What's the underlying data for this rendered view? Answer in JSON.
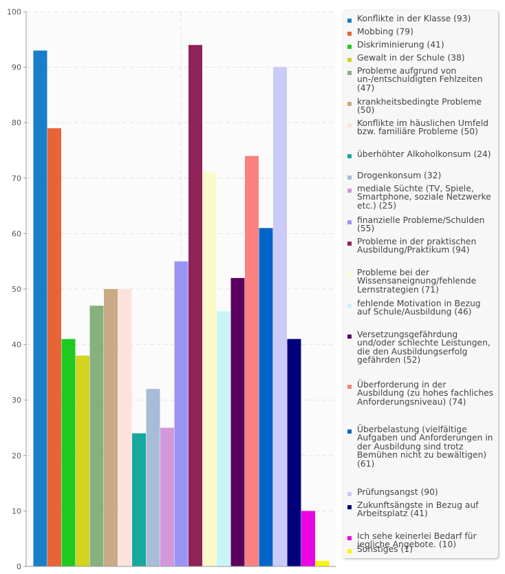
{
  "chart_data": {
    "type": "bar",
    "ylim": [
      0,
      100
    ],
    "yticks": [
      0,
      10,
      20,
      30,
      40,
      50,
      60,
      70,
      80,
      90,
      100
    ],
    "grid": true,
    "legend_position": "right",
    "bars": [
      {
        "label": "Konflikte in der Klasse (93)",
        "value": 93,
        "color": "#1a7ec8"
      },
      {
        "label": "Mobbing (79)",
        "value": 79,
        "color": "#e86436"
      },
      {
        "label": "Diskriminierung (41)",
        "value": 41,
        "color": "#20c920"
      },
      {
        "label": "Gewalt in der Schule (38)",
        "value": 38,
        "color": "#d2d41e"
      },
      {
        "label": "Probleme aufgrund von un-/entschuldigten Fehlzeiten (47)",
        "value": 47,
        "color": "#87b07f"
      },
      {
        "label": "krankheitsbedingte Probleme (50)",
        "value": 50,
        "color": "#c9aa84"
      },
      {
        "label": "Konflikte im häuslichen Umfeld bzw. familiäre Probleme (50)",
        "value": 50,
        "color": "#fbe3dc"
      },
      {
        "label": "überhöhter Alkoholkonsum (24)",
        "value": 24,
        "color": "#17a8a0"
      },
      {
        "label": "Drogenkonsum (32)",
        "value": 32,
        "color": "#a7bcd8"
      },
      {
        "label": "mediale Süchte (TV, Spiele, Smartphone, soziale Netzwerke etc.) (25)",
        "value": 25,
        "color": "#d398da"
      },
      {
        "label": "finanzielle Probleme/Schulden (55)",
        "value": 55,
        "color": "#9a95f5"
      },
      {
        "label": "Probleme in der praktischen Ausbildung/Praktikum (94)",
        "value": 94,
        "color": "#8f2257"
      },
      {
        "label": "Probleme bei der Wissensaneignung/fehlende Lernstrategien (71)",
        "value": 71,
        "color": "#fbf9c9"
      },
      {
        "label": "fehlende Motivation in Bezug auf Schule/Ausbildung (46)",
        "value": 46,
        "color": "#c8f6f8"
      },
      {
        "label": "Versetzungsgefährdung und/oder schlechte Leistungen, die den Ausbildungserfolg gefährden (52)",
        "value": 52,
        "color": "#5c0060"
      },
      {
        "label": "Überforderung in der Ausbildung (zu hohes fachliches Anforderungsniveau) (74)",
        "value": 74,
        "color": "#fb8080"
      },
      {
        "label": "Überbelastung (vielfältige Aufgaben und Anforderungen in der Ausbildung sind trotz Bemühen nicht zu bewältigen) (61)",
        "value": 61,
        "color": "#0564c8"
      },
      {
        "label": "Prüfungsangst (90)",
        "value": 90,
        "color": "#cbcbf9"
      },
      {
        "label": "Zukunftsängste in Bezug auf Arbeitsplatz (41)",
        "value": 41,
        "color": "#00007a"
      },
      {
        "label": "Ich sehe keinerlei Bedarf für jegliche Angebote. (10)",
        "value": 10,
        "color": "#ea06e4"
      },
      {
        "label": "Sonstiges (1)",
        "value": 1,
        "color": "#f6f606"
      }
    ]
  },
  "legend": {
    "items": [
      "Konflikte in der Klasse (93)",
      "Mobbing (79)",
      "Diskriminierung (41)",
      "Gewalt in der Schule (38)",
      "Probleme aufgrund von un-/entschuldigten Fehlzeiten (47)",
      "krankheitsbedingte Probleme (50)",
      "Konflikte im häuslichen Umfeld bzw. familiäre Probleme (50)",
      "überhöhter Alkoholkonsum (24)",
      "Drogenkonsum (32)",
      "mediale Süchte (TV, Spiele, Smartphone, soziale Netzwerke etc.) (25)",
      "finanzielle Probleme/Schulden (55)",
      "Probleme in der praktischen Ausbildung/Praktikum (94)",
      "Probleme bei der Wissensaneignung/fehlende Lernstrategien (71)",
      "fehlende Motivation in Bezug auf Schule/Ausbildung (46)",
      "Versetzungsgefährdung und/oder schlechte Leistungen, die den Ausbildungserfolg gefährden (52)",
      "Überforderung in der Ausbildung (zu hohes fachliches Anforderungsniveau) (74)",
      "Überbelastung (vielfältige Aufgaben und Anforderungen in der Ausbildung sind trotz Bemühen nicht zu bewältigen) (61)",
      "Prüfungsangst (90)",
      "Zukunftsängste in Bezug auf Arbeitsplatz (41)",
      "Ich sehe keinerlei Bedarf für jegliche Angebote. (10)",
      "Sonstiges (1)"
    ]
  }
}
